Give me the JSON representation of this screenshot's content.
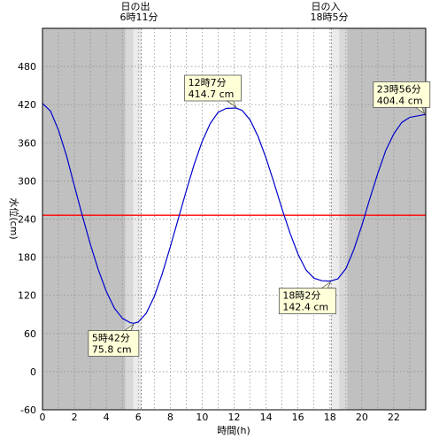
{
  "chart_data": {
    "type": "line",
    "xlabel": "時間(h)",
    "ylabel": "水位(cm)",
    "xlim": [
      0,
      24
    ],
    "ylim": [
      -60,
      540
    ],
    "x_ticks": [
      0,
      2,
      4,
      6,
      8,
      10,
      12,
      14,
      16,
      18,
      20,
      22
    ],
    "y_ticks": [
      -60,
      0,
      60,
      120,
      180,
      240,
      300,
      360,
      420,
      480
    ],
    "reference_line": {
      "y": 246,
      "color": "#ff0000"
    },
    "series": [
      {
        "color": "#0000cc",
        "x": [
          0,
          0.5,
          1,
          1.5,
          2,
          2.5,
          3,
          3.5,
          4,
          4.5,
          5,
          5.5,
          5.7,
          6,
          6.5,
          7,
          7.5,
          8,
          8.5,
          9,
          9.5,
          10,
          10.5,
          11,
          11.5,
          12.117,
          12.5,
          13,
          13.5,
          14,
          14.5,
          15,
          15.5,
          16,
          16.5,
          17,
          17.5,
          18.033,
          18.5,
          19,
          19.5,
          20,
          20.5,
          21,
          21.5,
          22,
          22.5,
          23,
          23.933,
          24
        ],
        "values": [
          422,
          410,
          380,
          340,
          292,
          245,
          200,
          160,
          126,
          100,
          84,
          77,
          76,
          78,
          92,
          118,
          154,
          196,
          240,
          284,
          326,
          362,
          390,
          408,
          414,
          414.7,
          411,
          396,
          370,
          336,
          297,
          256,
          218,
          185,
          160,
          147,
          143,
          142.4,
          146,
          162,
          192,
          230,
          272,
          312,
          348,
          374,
          392,
          400,
          404.4,
          404
        ]
      }
    ],
    "daylight": {
      "sunrise_hour": 6.183,
      "sunset_hour": 18.083
    },
    "sunrise": {
      "title": "日の出",
      "time": "6時11分"
    },
    "sunset": {
      "title": "日の入",
      "time": "18時5分"
    },
    "annotations": [
      {
        "time": "12時7分",
        "level": "414.7 cm",
        "x": 12.117,
        "y": 414.7,
        "placement": "above-left"
      },
      {
        "time": "5時42分",
        "level": "75.8 cm",
        "x": 5.7,
        "y": 75.8,
        "placement": "below-left"
      },
      {
        "time": "18時2分",
        "level": "142.4 cm",
        "x": 18.033,
        "y": 142.4,
        "placement": "below-left"
      },
      {
        "time": "23時56分",
        "level": "404.4 cm",
        "x": 23.933,
        "y": 404.4,
        "placement": "above-left"
      }
    ]
  }
}
